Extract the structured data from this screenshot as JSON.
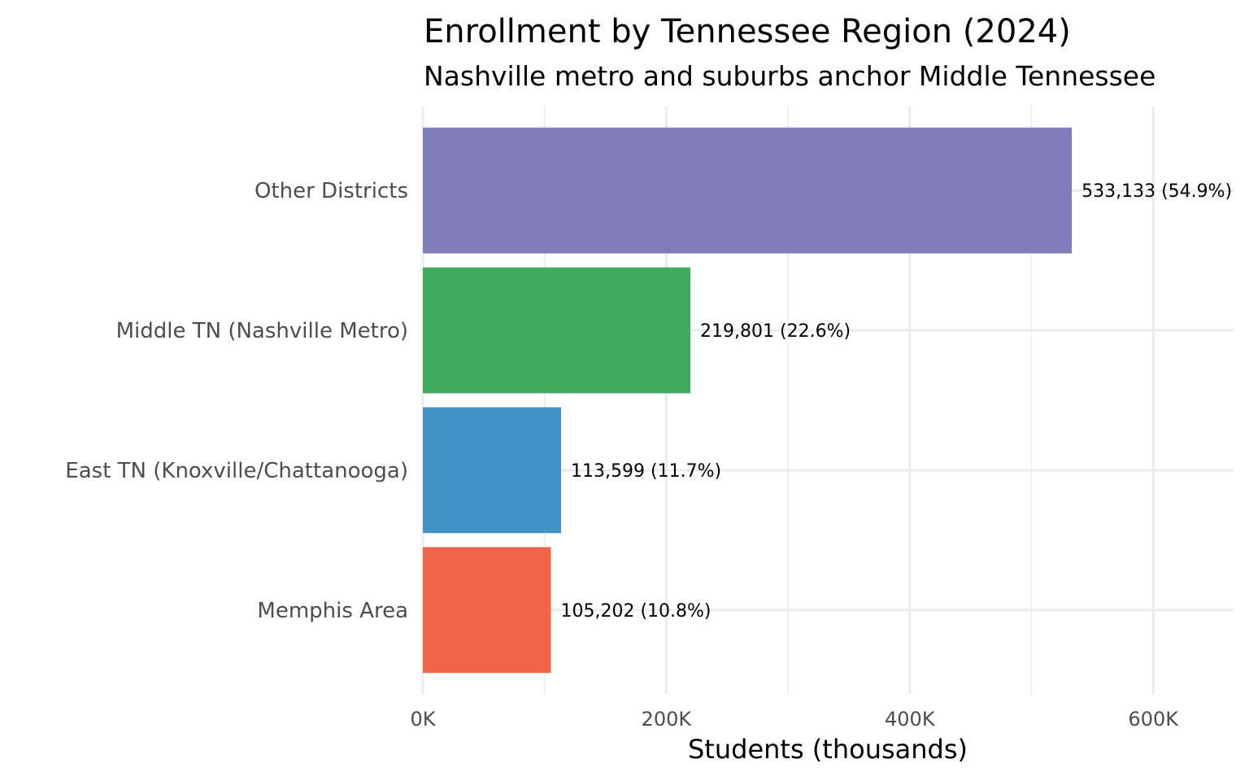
{
  "chart_data": {
    "type": "bar",
    "orientation": "horizontal",
    "title": "Enrollment by Tennessee Region (2024)",
    "subtitle": "Nashville metro and suburbs anchor Middle Tennessee",
    "xlabel": "Students (thousands)",
    "ylabel": "",
    "xlim": [
      0,
      666
    ],
    "x_unit": "thousands of students",
    "xticks": [
      0,
      200,
      400,
      600
    ],
    "xtick_labels": [
      "0K",
      "200K",
      "400K",
      "600K"
    ],
    "grid": true,
    "legend": "none",
    "categories": [
      "Other Districts",
      "Middle TN (Nashville Metro)",
      "East TN (Knoxville/Chattanooga)",
      "Memphis Area"
    ],
    "values": [
      533.133,
      219.801,
      113.599,
      105.202
    ],
    "data_labels": [
      "533,133 (54.9%)",
      "219,801 (22.6%)",
      "113,599 (11.7%)",
      "105,202 (10.8%)"
    ],
    "colors": [
      "#807dba",
      "#41ab5d",
      "#4292c6",
      "#ef6548"
    ]
  }
}
